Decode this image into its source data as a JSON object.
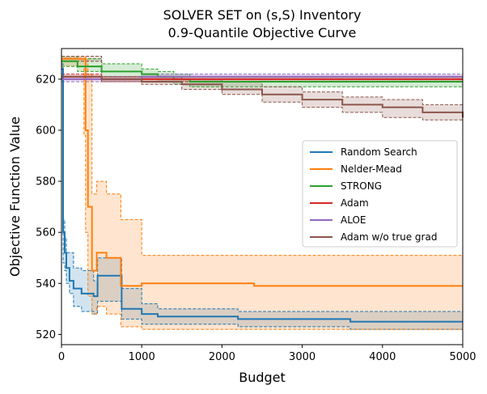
{
  "chart_data": {
    "type": "line",
    "title": "SOLVER SET on (s,S) Inventory",
    "subtitle": "0.9-Quantile Objective Curve",
    "xlabel": "Budget",
    "ylabel": "Objective Function Value",
    "xlim": [
      0,
      5000
    ],
    "ylim": [
      516,
      632
    ],
    "xticks": [
      0,
      1000,
      2000,
      3000,
      4000,
      5000
    ],
    "yticks": [
      520,
      540,
      560,
      580,
      600,
      620
    ],
    "grid": false,
    "legend_position": "center-right",
    "series": [
      {
        "name": "Random Search",
        "color": "#1f77b4",
        "x": [
          0,
          20,
          40,
          60,
          100,
          150,
          250,
          400,
          450,
          750,
          1000,
          1200,
          2200,
          3600,
          5000
        ],
        "y": [
          624,
          560,
          552,
          546,
          541,
          538,
          536,
          535,
          543,
          530,
          528,
          527,
          526,
          525,
          525
        ],
        "lower": [
          622,
          548,
          545,
          540,
          536,
          531,
          529,
          528,
          533,
          526,
          524,
          524,
          523,
          522,
          522
        ],
        "upper": [
          626,
          565,
          558,
          552,
          552,
          546,
          545,
          541,
          550,
          538,
          532,
          530,
          529,
          529,
          530
        ]
      },
      {
        "name": "Nelder-Mead",
        "color": "#ff7f0e",
        "x": [
          0,
          200,
          280,
          300,
          330,
          380,
          440,
          560,
          740,
          1000,
          1600,
          2400,
          5000
        ],
        "y": [
          628,
          628,
          628,
          600,
          570,
          545,
          552,
          550,
          539,
          540,
          540,
          539,
          539
        ],
        "lower": [
          625,
          625,
          598,
          560,
          535,
          528,
          531,
          528,
          523,
          522,
          522,
          522,
          522
        ],
        "upper": [
          629,
          629,
          629,
          628,
          622,
          575,
          580,
          575,
          565,
          551,
          551,
          551,
          551
        ]
      },
      {
        "name": "STRONG",
        "color": "#2ca02c",
        "x": [
          0,
          200,
          500,
          1000,
          1200,
          1400,
          1600,
          2200,
          3000,
          5000
        ],
        "y": [
          627,
          625,
          623,
          622,
          621,
          620,
          619,
          619,
          619,
          619
        ],
        "lower": [
          625,
          623,
          621,
          620,
          619,
          618,
          617,
          617,
          617,
          617
        ],
        "upper": [
          629,
          628,
          626,
          624,
          623,
          622,
          621,
          621,
          621,
          621
        ]
      },
      {
        "name": "Adam",
        "color": "#d62728",
        "x": [
          0,
          500,
          1000,
          2000,
          3000,
          5000
        ],
        "y": [
          621,
          620,
          620,
          620,
          620,
          620
        ],
        "lower": [
          620,
          619,
          619,
          619,
          619,
          619
        ],
        "upper": [
          622,
          621,
          621,
          621,
          621,
          621
        ]
      },
      {
        "name": "ALOE",
        "color": "#9467bd",
        "x": [
          0,
          500,
          1000,
          1500,
          2000,
          3000,
          5000
        ],
        "y": [
          620,
          620,
          621,
          621,
          621,
          621,
          621
        ],
        "lower": [
          619,
          619,
          620,
          620,
          620,
          620,
          620
        ],
        "upper": [
          621,
          621,
          622,
          622,
          622,
          622,
          622
        ]
      },
      {
        "name": "Adam w/o true grad",
        "color": "#8c564b",
        "x": [
          0,
          500,
          1000,
          1500,
          2000,
          2500,
          3000,
          3500,
          4000,
          4500,
          5000
        ],
        "y": [
          621,
          620,
          619,
          618,
          616,
          614,
          612,
          610,
          609,
          607,
          605
        ],
        "lower": [
          627,
          619,
          618,
          616,
          614,
          611,
          609,
          607,
          605,
          604,
          603
        ],
        "upper": [
          629,
          621,
          621,
          620,
          619,
          617,
          615,
          613,
          612,
          610,
          608
        ]
      }
    ]
  }
}
